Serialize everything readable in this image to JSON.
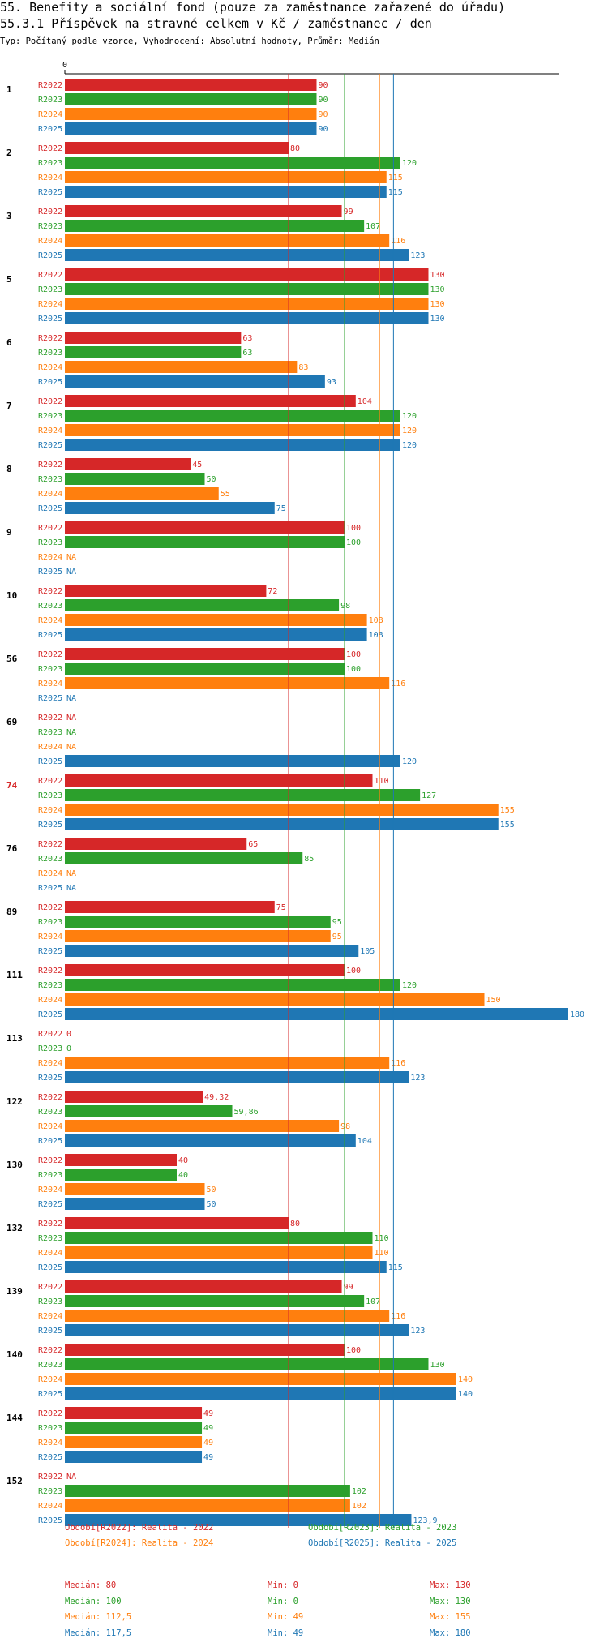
{
  "header": {
    "title": "55. Benefity a sociální fond (pouze za zaměstnance zařazené do úřadu)",
    "subtitle": "55.3.1 Příspěvek na stravné celkem v Kč / zaměstnanec / den",
    "meta": "Typ: Počítaný podle vzorce, Vyhodnocení: Absolutní hodnoty, Průměr: Medián"
  },
  "colors": {
    "R2022": "#d62728",
    "R2023": "#2ca02c",
    "R2024": "#ff7f0e",
    "R2025": "#1f77b4",
    "highlight": "#d62728"
  },
  "chart_data": {
    "type": "bar",
    "orientation": "horizontal",
    "title": "55.3.1 Příspěvek na stravné celkem v Kč / zaměstnanec / den",
    "xmin_label": "0",
    "xlim": [
      0,
      180
    ],
    "series_names": [
      "R2022",
      "R2023",
      "R2024",
      "R2025"
    ],
    "groups": [
      {
        "id": "1",
        "highlight": false,
        "values": [
          90,
          90,
          90,
          90
        ],
        "labels": [
          "90",
          "90",
          "90",
          "90"
        ]
      },
      {
        "id": "2",
        "highlight": false,
        "values": [
          80,
          120,
          115,
          115
        ],
        "labels": [
          "80",
          "120",
          "115",
          "115"
        ]
      },
      {
        "id": "3",
        "highlight": false,
        "values": [
          99,
          107,
          116,
          123
        ],
        "labels": [
          "99",
          "107",
          "116",
          "123"
        ]
      },
      {
        "id": "5",
        "highlight": false,
        "values": [
          130,
          130,
          130,
          130
        ],
        "labels": [
          "130",
          "130",
          "130",
          "130"
        ]
      },
      {
        "id": "6",
        "highlight": false,
        "values": [
          63,
          63,
          83,
          93
        ],
        "labels": [
          "63",
          "63",
          "83",
          "93"
        ]
      },
      {
        "id": "7",
        "highlight": false,
        "values": [
          104,
          120,
          120,
          120
        ],
        "labels": [
          "104",
          "120",
          "120",
          "120"
        ]
      },
      {
        "id": "8",
        "highlight": false,
        "values": [
          45,
          50,
          55,
          75
        ],
        "labels": [
          "45",
          "50",
          "55",
          "75"
        ]
      },
      {
        "id": "9",
        "highlight": false,
        "values": [
          100,
          100,
          null,
          null
        ],
        "labels": [
          "100",
          "100",
          "NA",
          "NA"
        ]
      },
      {
        "id": "10",
        "highlight": false,
        "values": [
          72,
          98,
          108,
          108
        ],
        "labels": [
          "72",
          "98",
          "108",
          "108"
        ]
      },
      {
        "id": "56",
        "highlight": false,
        "values": [
          100,
          100,
          116,
          null
        ],
        "labels": [
          "100",
          "100",
          "116",
          "NA"
        ]
      },
      {
        "id": "69",
        "highlight": false,
        "values": [
          null,
          null,
          null,
          120
        ],
        "labels": [
          "NA",
          "NA",
          "NA",
          "120"
        ]
      },
      {
        "id": "74",
        "highlight": true,
        "values": [
          110,
          127,
          155,
          155
        ],
        "labels": [
          "110",
          "127",
          "155",
          "155"
        ]
      },
      {
        "id": "76",
        "highlight": false,
        "values": [
          65,
          85,
          null,
          null
        ],
        "labels": [
          "65",
          "85",
          "NA",
          "NA"
        ]
      },
      {
        "id": "89",
        "highlight": false,
        "values": [
          75,
          95,
          95,
          105
        ],
        "labels": [
          "75",
          "95",
          "95",
          "105"
        ]
      },
      {
        "id": "111",
        "highlight": false,
        "values": [
          100,
          120,
          150,
          180
        ],
        "labels": [
          "100",
          "120",
          "150",
          "180"
        ]
      },
      {
        "id": "113",
        "highlight": false,
        "values": [
          0,
          0,
          116,
          123
        ],
        "labels": [
          "0",
          "0",
          "116",
          "123"
        ]
      },
      {
        "id": "122",
        "highlight": false,
        "values": [
          49.32,
          59.86,
          98,
          104
        ],
        "labels": [
          "49,32",
          "59,86",
          "98",
          "104"
        ]
      },
      {
        "id": "130",
        "highlight": false,
        "values": [
          40,
          40,
          50,
          50
        ],
        "labels": [
          "40",
          "40",
          "50",
          "50"
        ]
      },
      {
        "id": "132",
        "highlight": false,
        "values": [
          80,
          110,
          110,
          115
        ],
        "labels": [
          "80",
          "110",
          "110",
          "115"
        ]
      },
      {
        "id": "139",
        "highlight": false,
        "values": [
          99,
          107,
          116,
          123
        ],
        "labels": [
          "99",
          "107",
          "116",
          "123"
        ]
      },
      {
        "id": "140",
        "highlight": false,
        "values": [
          100,
          130,
          140,
          140
        ],
        "labels": [
          "100",
          "130",
          "140",
          "140"
        ]
      },
      {
        "id": "144",
        "highlight": false,
        "values": [
          49,
          49,
          49,
          49
        ],
        "labels": [
          "49",
          "49",
          "49",
          "49"
        ]
      },
      {
        "id": "152",
        "highlight": false,
        "values": [
          null,
          102,
          102,
          123.9
        ],
        "labels": [
          "NA",
          "102",
          "102",
          "123,9"
        ]
      }
    ],
    "median_lines": [
      80,
      100,
      112.5,
      117.5
    ]
  },
  "legend": {
    "periods": [
      {
        "series": "R2022",
        "text": "Období[R2022]: Realita - 2022"
      },
      {
        "series": "R2023",
        "text": "Období[R2023]: Realita - 2023"
      },
      {
        "series": "R2024",
        "text": "Období[R2024]: Realita - 2024"
      },
      {
        "series": "R2025",
        "text": "Období[R2025]: Realita - 2025"
      }
    ],
    "stats": [
      {
        "series": "R2022",
        "median": "Medián: 80",
        "min": "Min: 0",
        "max": "Max: 130"
      },
      {
        "series": "R2023",
        "median": "Medián: 100",
        "min": "Min: 0",
        "max": "Max: 130"
      },
      {
        "series": "R2024",
        "median": "Medián: 112,5",
        "min": "Min: 49",
        "max": "Max: 155"
      },
      {
        "series": "R2025",
        "median": "Medián: 117,5",
        "min": "Min: 49",
        "max": "Max: 180"
      }
    ]
  }
}
